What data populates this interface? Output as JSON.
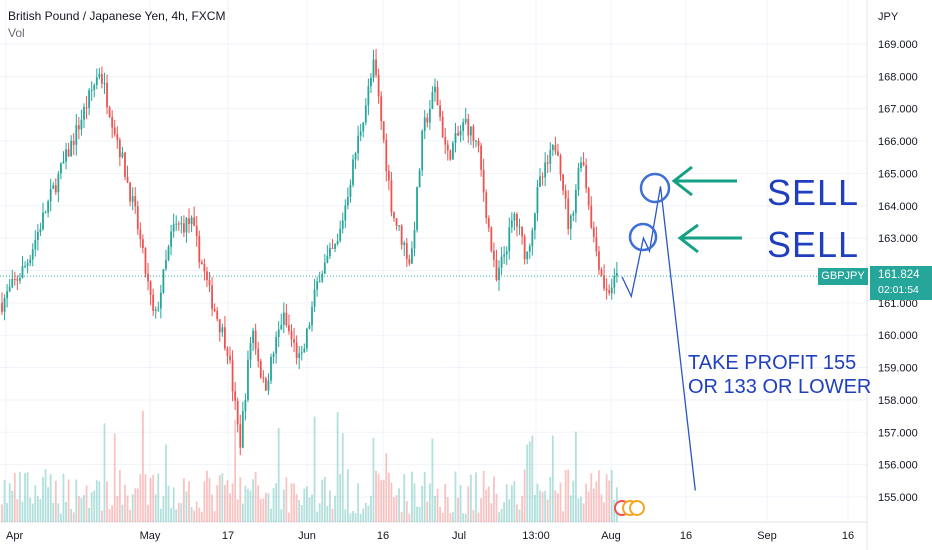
{
  "header": {
    "title": "British Pound / Japanese Yen, 4h, FXCM",
    "indicator": "Vol"
  },
  "axis": {
    "currency": "JPY"
  },
  "price_tag": {
    "symbol": "GBPJPY",
    "price": "161.824",
    "countdown": "02:01:54"
  },
  "annotations": {
    "sell_1": "SELL",
    "sell_2": "SELL",
    "take_profit_line1": "TAKE PROFIT 155",
    "take_profit_line2": "OR 133 OR LOWER"
  },
  "colors": {
    "up": "#26a69a",
    "down": "#ef5350",
    "annotation_blue": "#1f3fbf",
    "arrow_green": "#16a085"
  },
  "chart_data": {
    "type": "candlestick",
    "title": "British Pound / Japanese Yen, 4h, FXCM",
    "ylabel": "JPY",
    "ylim": [
      154.5,
      169.6
    ],
    "y_ticks": [
      "155.000",
      "156.000",
      "157.000",
      "158.000",
      "159.000",
      "160.000",
      "161.000",
      "162.000",
      "163.000",
      "164.000",
      "165.000",
      "166.000",
      "167.000",
      "168.000",
      "169.000"
    ],
    "x_ticks": [
      "Apr",
      "May",
      "17",
      "Jun",
      "16",
      "Jul",
      "13:00",
      "Aug",
      "16",
      "Sep",
      "16"
    ],
    "last_price": 161.824,
    "price_path_points": [
      {
        "day": 0,
        "price": 161.0
      },
      {
        "day": 4,
        "price": 162.2
      },
      {
        "day": 8,
        "price": 164.3
      },
      {
        "day": 12,
        "price": 166.2
      },
      {
        "day": 16,
        "price": 168.2
      },
      {
        "day": 19,
        "price": 166.0
      },
      {
        "day": 22,
        "price": 163.6
      },
      {
        "day": 25,
        "price": 160.4
      },
      {
        "day": 28,
        "price": 163.3
      },
      {
        "day": 31,
        "price": 163.5
      },
      {
        "day": 34,
        "price": 161.3
      },
      {
        "day": 37,
        "price": 159.6
      },
      {
        "day": 39,
        "price": 156.6
      },
      {
        "day": 41,
        "price": 160.3
      },
      {
        "day": 43,
        "price": 158.3
      },
      {
        "day": 46,
        "price": 160.6
      },
      {
        "day": 49,
        "price": 159.1
      },
      {
        "day": 52,
        "price": 161.9
      },
      {
        "day": 55,
        "price": 162.8
      },
      {
        "day": 58,
        "price": 165.7
      },
      {
        "day": 61,
        "price": 168.4
      },
      {
        "day": 64,
        "price": 163.8
      },
      {
        "day": 67,
        "price": 162.2
      },
      {
        "day": 69,
        "price": 166.3
      },
      {
        "day": 71,
        "price": 167.6
      },
      {
        "day": 73,
        "price": 165.5
      },
      {
        "day": 76,
        "price": 166.6
      },
      {
        "day": 78,
        "price": 165.8
      },
      {
        "day": 81,
        "price": 161.6
      },
      {
        "day": 84,
        "price": 163.7
      },
      {
        "day": 86,
        "price": 162.4
      },
      {
        "day": 88,
        "price": 164.6
      },
      {
        "day": 91,
        "price": 166.0
      },
      {
        "day": 93,
        "price": 163.2
      },
      {
        "day": 95,
        "price": 165.7
      },
      {
        "day": 97,
        "price": 163.0
      },
      {
        "day": 99,
        "price": 161.3
      },
      {
        "day": 101,
        "price": 161.8
      }
    ],
    "projection": [
      {
        "day": 101,
        "price": 161.8
      },
      {
        "day": 102.5,
        "price": 161.2
      },
      {
        "day": 104.5,
        "price": 163.0
      },
      {
        "day": 105.5,
        "price": 162.6
      },
      {
        "day": 107.3,
        "price": 164.6
      },
      {
        "day": 113,
        "price": 155.2
      }
    ]
  }
}
